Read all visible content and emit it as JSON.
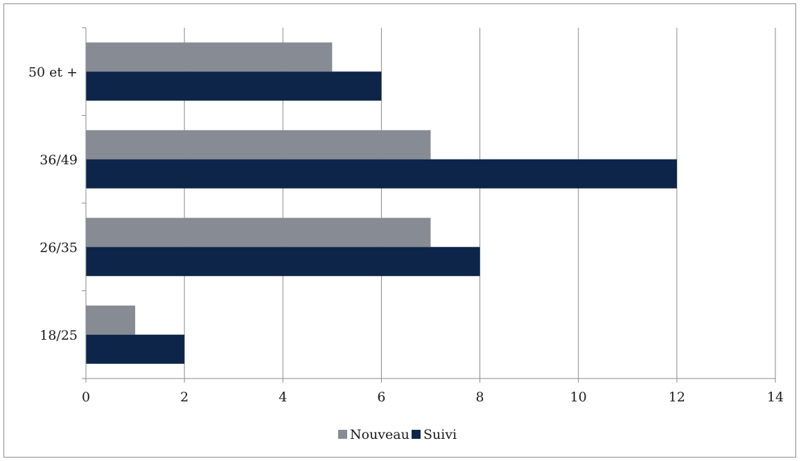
{
  "chart_data": {
    "type": "bar",
    "orientation": "horizontal",
    "categories": [
      "18/25",
      "26/35",
      "36/49",
      "50 et +"
    ],
    "series": [
      {
        "name": "Nouveau",
        "values": [
          1,
          7,
          7,
          5
        ],
        "color": "#878b94"
      },
      {
        "name": "Suivi",
        "values": [
          2,
          8,
          12,
          6
        ],
        "color": "#0c2549"
      }
    ],
    "xlim": [
      0,
      14
    ],
    "xticks": [
      0,
      2,
      4,
      6,
      8,
      10,
      12,
      14
    ],
    "grid": "vertical",
    "legend": "bottom-center",
    "title": "",
    "xlabel": "",
    "ylabel": ""
  }
}
